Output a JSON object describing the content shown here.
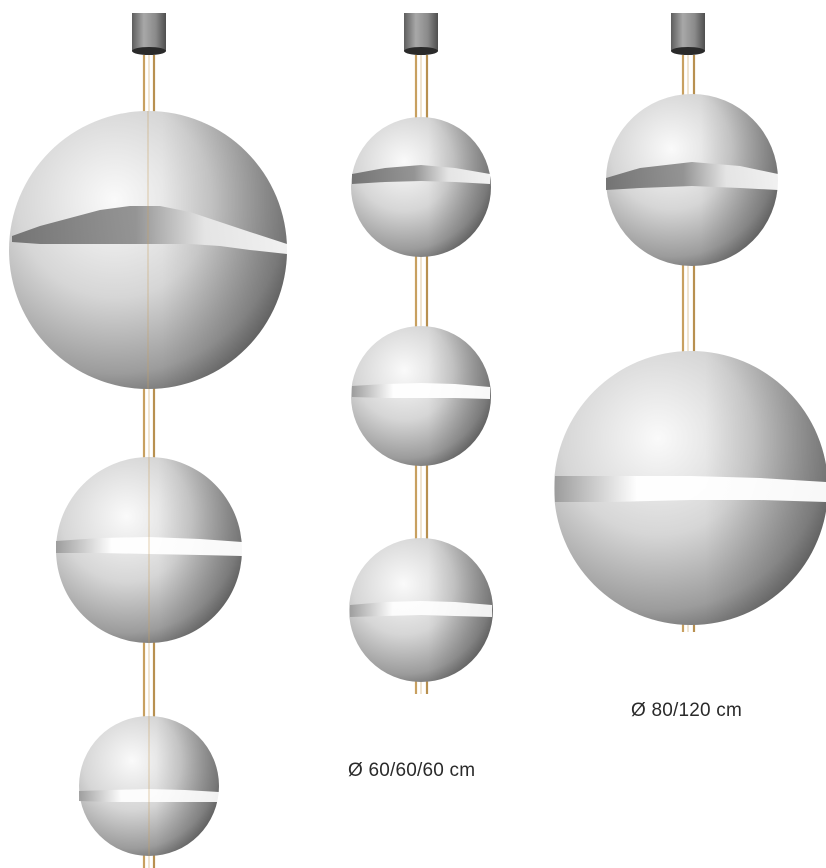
{
  "captions": {
    "middle": "Ø 60/60/60 cm",
    "right": "Ø 80/120 cm"
  },
  "colors": {
    "background": "#ffffff",
    "rod": "#c8a060",
    "canopy": "#7a7a7a",
    "sphere_light": "#f4f4f4",
    "sphere_dark": "#5c5c5c"
  }
}
